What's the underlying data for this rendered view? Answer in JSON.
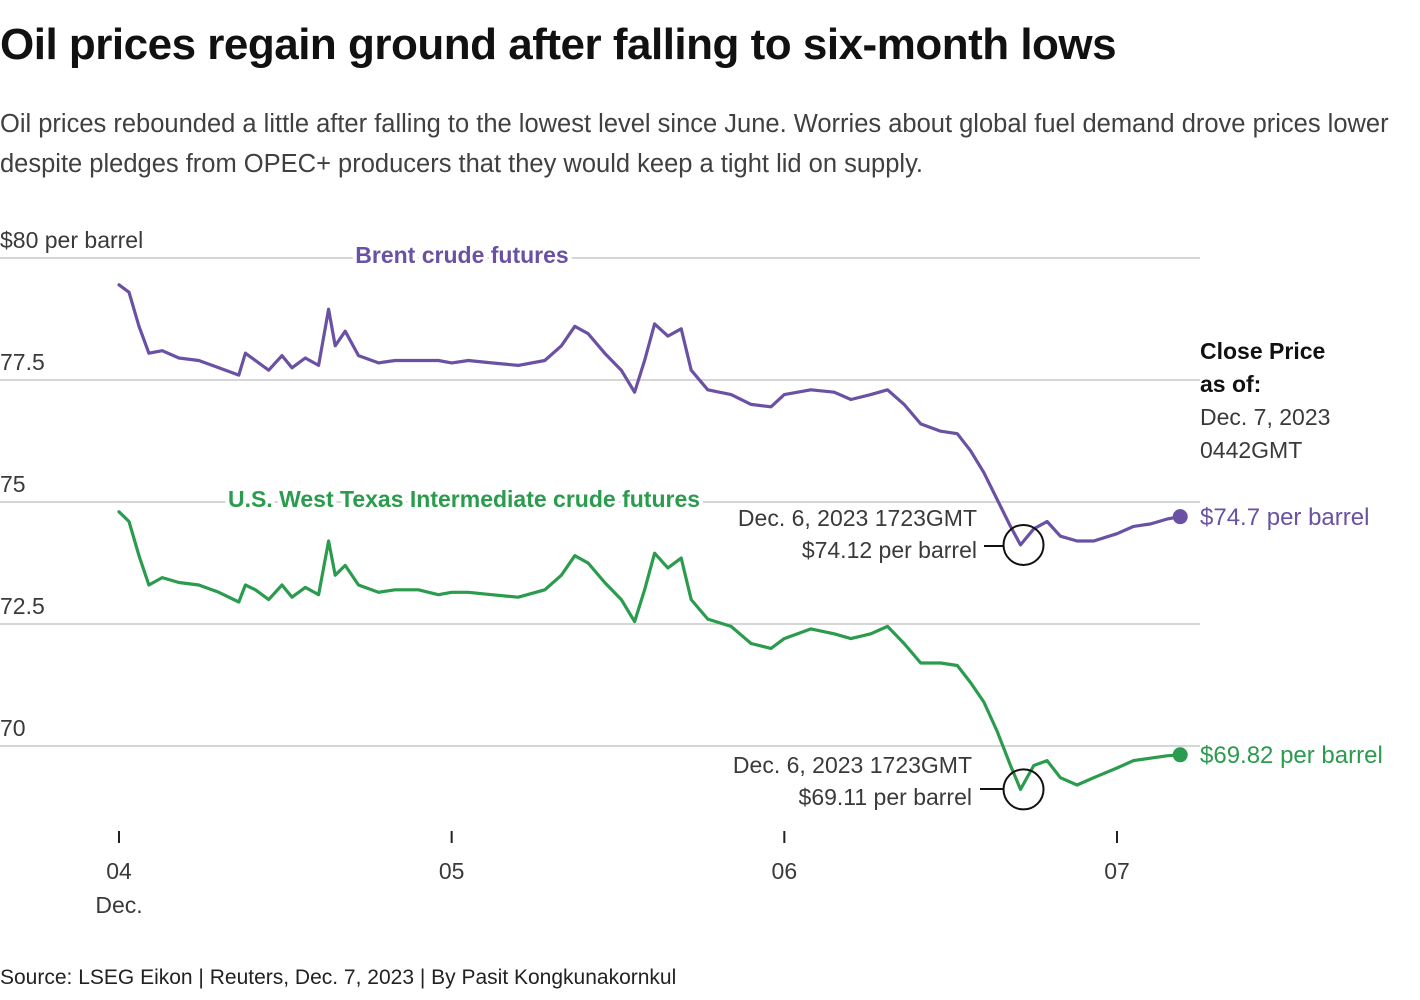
{
  "title": "Oil prices regain ground after falling to six-month lows",
  "subtitle": "Oil prices rebounded a little after falling to the lowest level since June. Worries about global fuel demand drove prices lower despite pledges from OPEC+ producers that they would keep a tight lid on supply.",
  "source": "Source: LSEG Eikon | Reuters, Dec. 7, 2023 | By Pasit Kongkunakornkul",
  "colors": {
    "brent": "#6a51a3",
    "wti": "#2b9b4e",
    "grid": "#c8c8c8",
    "text": "#3a3a3a"
  },
  "chart_data": {
    "type": "line",
    "title": "Oil prices regain ground after falling to six-month lows",
    "ylabel": "$ per barrel",
    "xlabel": "",
    "ylim": [
      67.5,
      80
    ],
    "xlim": [
      3.75,
      7.25
    ],
    "yticks": [
      {
        "value": 80,
        "label": "$80 per barrel"
      },
      {
        "value": 77.5,
        "label": "77.5"
      },
      {
        "value": 75,
        "label": "75"
      },
      {
        "value": 72.5,
        "label": "72.5"
      },
      {
        "value": 70,
        "label": "70"
      }
    ],
    "xticks": [
      {
        "value": 4,
        "label": "04",
        "sublabel": "Dec."
      },
      {
        "value": 5,
        "label": "05",
        "sublabel": ""
      },
      {
        "value": 6,
        "label": "06",
        "sublabel": ""
      },
      {
        "value": 7,
        "label": "07",
        "sublabel": ""
      }
    ],
    "x_unit": "day of December 2023",
    "series": [
      {
        "name": "Brent crude futures",
        "color": "#6a51a3",
        "label_position": "top",
        "end_label": "$74.7 per barrel",
        "points": [
          [
            4.0,
            79.45
          ],
          [
            4.03,
            79.3
          ],
          [
            4.06,
            78.6
          ],
          [
            4.09,
            78.05
          ],
          [
            4.13,
            78.1
          ],
          [
            4.18,
            77.95
          ],
          [
            4.24,
            77.9
          ],
          [
            4.3,
            77.75
          ],
          [
            4.36,
            77.6
          ],
          [
            4.38,
            78.05
          ],
          [
            4.41,
            77.9
          ],
          [
            4.45,
            77.7
          ],
          [
            4.49,
            78.0
          ],
          [
            4.52,
            77.75
          ],
          [
            4.56,
            77.95
          ],
          [
            4.6,
            77.8
          ],
          [
            4.63,
            78.95
          ],
          [
            4.65,
            78.2
          ],
          [
            4.68,
            78.5
          ],
          [
            4.72,
            78.0
          ],
          [
            4.78,
            77.85
          ],
          [
            4.83,
            77.9
          ],
          [
            4.9,
            77.9
          ],
          [
            4.96,
            77.9
          ],
          [
            5.0,
            77.85
          ],
          [
            5.05,
            77.9
          ],
          [
            5.12,
            77.85
          ],
          [
            5.2,
            77.8
          ],
          [
            5.28,
            77.9
          ],
          [
            5.33,
            78.2
          ],
          [
            5.37,
            78.6
          ],
          [
            5.41,
            78.45
          ],
          [
            5.46,
            78.05
          ],
          [
            5.51,
            77.7
          ],
          [
            5.55,
            77.25
          ],
          [
            5.58,
            77.9
          ],
          [
            5.61,
            78.65
          ],
          [
            5.65,
            78.4
          ],
          [
            5.69,
            78.55
          ],
          [
            5.72,
            77.7
          ],
          [
            5.77,
            77.3
          ],
          [
            5.84,
            77.2
          ],
          [
            5.9,
            77.0
          ],
          [
            5.96,
            76.95
          ],
          [
            6.0,
            77.2
          ],
          [
            6.08,
            77.3
          ],
          [
            6.15,
            77.25
          ],
          [
            6.2,
            77.1
          ],
          [
            6.26,
            77.2
          ],
          [
            6.31,
            77.3
          ],
          [
            6.36,
            77.0
          ],
          [
            6.41,
            76.6
          ],
          [
            6.47,
            76.45
          ],
          [
            6.52,
            76.4
          ],
          [
            6.56,
            76.05
          ],
          [
            6.6,
            75.6
          ],
          [
            6.64,
            75.05
          ],
          [
            6.68,
            74.5
          ],
          [
            6.71,
            74.12
          ],
          [
            6.75,
            74.45
          ],
          [
            6.79,
            74.6
          ],
          [
            6.83,
            74.3
          ],
          [
            6.88,
            74.2
          ],
          [
            6.93,
            74.2
          ],
          [
            7.0,
            74.35
          ],
          [
            7.05,
            74.5
          ],
          [
            7.1,
            74.55
          ],
          [
            7.15,
            74.65
          ],
          [
            7.19,
            74.7
          ]
        ],
        "annotation": {
          "x": 6.71,
          "y": 74.12,
          "lines": [
            "Dec. 6, 2023 1723GMT",
            "$74.12 per barrel"
          ]
        }
      },
      {
        "name": "U.S. West Texas Intermediate crude futures",
        "color": "#2b9b4e",
        "label_position": "top",
        "end_label": "$69.82 per barrel",
        "points": [
          [
            4.0,
            74.8
          ],
          [
            4.03,
            74.6
          ],
          [
            4.06,
            73.9
          ],
          [
            4.09,
            73.3
          ],
          [
            4.13,
            73.45
          ],
          [
            4.18,
            73.35
          ],
          [
            4.24,
            73.3
          ],
          [
            4.3,
            73.15
          ],
          [
            4.36,
            72.95
          ],
          [
            4.38,
            73.3
          ],
          [
            4.41,
            73.2
          ],
          [
            4.45,
            73.0
          ],
          [
            4.49,
            73.3
          ],
          [
            4.52,
            73.05
          ],
          [
            4.56,
            73.25
          ],
          [
            4.6,
            73.1
          ],
          [
            4.63,
            74.2
          ],
          [
            4.65,
            73.5
          ],
          [
            4.68,
            73.7
          ],
          [
            4.72,
            73.3
          ],
          [
            4.78,
            73.15
          ],
          [
            4.83,
            73.2
          ],
          [
            4.9,
            73.2
          ],
          [
            4.96,
            73.1
          ],
          [
            5.0,
            73.15
          ],
          [
            5.05,
            73.15
          ],
          [
            5.12,
            73.1
          ],
          [
            5.2,
            73.05
          ],
          [
            5.28,
            73.2
          ],
          [
            5.33,
            73.5
          ],
          [
            5.37,
            73.9
          ],
          [
            5.41,
            73.75
          ],
          [
            5.46,
            73.35
          ],
          [
            5.51,
            73.0
          ],
          [
            5.55,
            72.55
          ],
          [
            5.58,
            73.2
          ],
          [
            5.61,
            73.95
          ],
          [
            5.65,
            73.65
          ],
          [
            5.69,
            73.85
          ],
          [
            5.72,
            73.0
          ],
          [
            5.77,
            72.6
          ],
          [
            5.84,
            72.45
          ],
          [
            5.9,
            72.1
          ],
          [
            5.96,
            72.0
          ],
          [
            6.0,
            72.2
          ],
          [
            6.08,
            72.4
          ],
          [
            6.15,
            72.3
          ],
          [
            6.2,
            72.2
          ],
          [
            6.26,
            72.3
          ],
          [
            6.31,
            72.45
          ],
          [
            6.36,
            72.1
          ],
          [
            6.41,
            71.7
          ],
          [
            6.47,
            71.7
          ],
          [
            6.52,
            71.65
          ],
          [
            6.56,
            71.3
          ],
          [
            6.6,
            70.9
          ],
          [
            6.64,
            70.3
          ],
          [
            6.68,
            69.6
          ],
          [
            6.71,
            69.11
          ],
          [
            6.75,
            69.6
          ],
          [
            6.79,
            69.7
          ],
          [
            6.83,
            69.35
          ],
          [
            6.88,
            69.2
          ],
          [
            6.93,
            69.35
          ],
          [
            7.0,
            69.55
          ],
          [
            7.05,
            69.7
          ],
          [
            7.1,
            69.75
          ],
          [
            7.15,
            69.8
          ],
          [
            7.19,
            69.82
          ]
        ],
        "annotation": {
          "x": 6.71,
          "y": 69.11,
          "lines": [
            "Dec. 6, 2023 1723GMT",
            "$69.11 per barrel"
          ]
        }
      }
    ],
    "close_note": {
      "heading": [
        "Close Price",
        "as of:"
      ],
      "lines": [
        "Dec. 7, 2023",
        "0442GMT"
      ]
    }
  }
}
